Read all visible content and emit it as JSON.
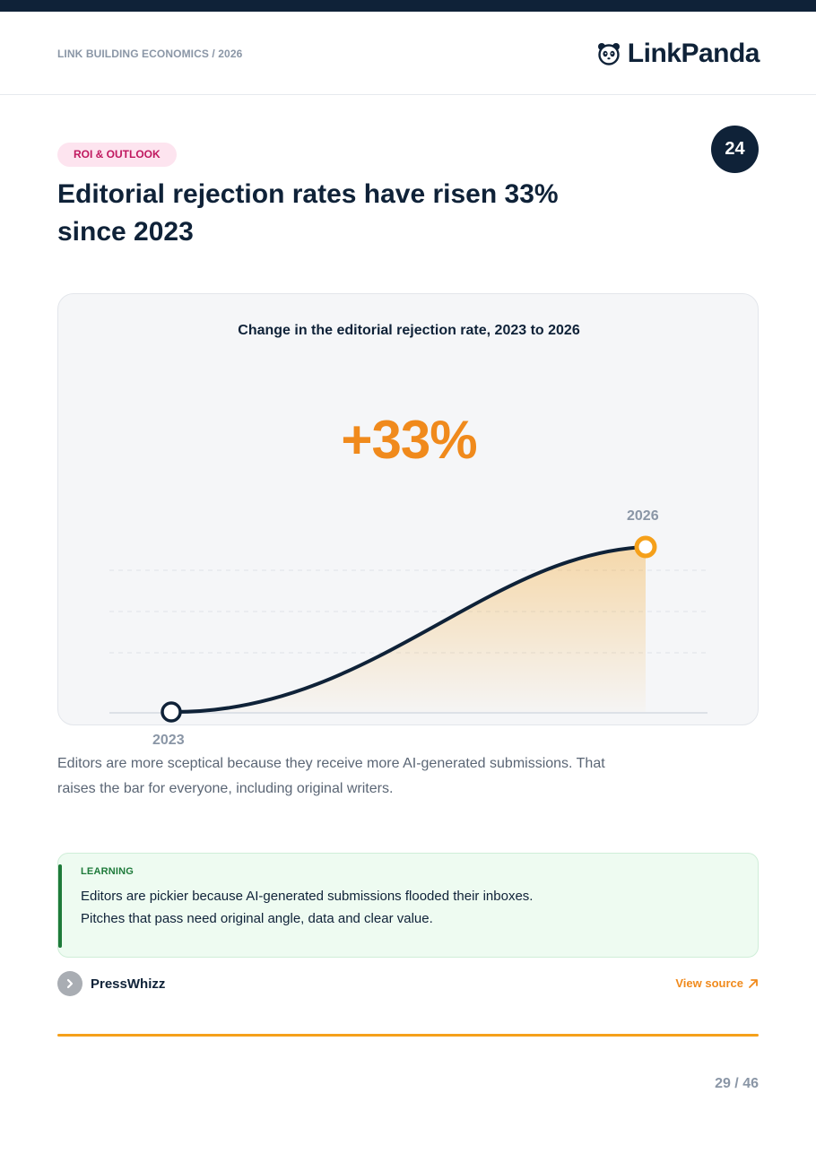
{
  "header": {
    "breadcrumb": "LINK BUILDING ECONOMICS / 2026",
    "brand_name": "LinkPanda",
    "brand_icon": "panda-icon"
  },
  "section": {
    "tag": "ROI & OUTLOOK",
    "number": "24",
    "title_line1": "Editorial rejection rates have risen 33%",
    "title_line2": "since 2023"
  },
  "chart_data": {
    "type": "line",
    "title": "Change in the editorial rejection rate, 2023 to 2026",
    "headline_value": "+33%",
    "x": [
      "2023",
      "2026"
    ],
    "series": [
      {
        "values": [
          0,
          33
        ]
      }
    ],
    "ylim": [
      0,
      33
    ],
    "grid": true,
    "colors": {
      "line": "#0f2238",
      "fill": "#f5a01a",
      "end_marker": "#f5a01a",
      "start_marker": "#0f2238"
    }
  },
  "body": {
    "line1": "Editors are more sceptical because they receive more AI-generated submissions. That",
    "line2": "raises the bar for everyone, including original writers."
  },
  "callout": {
    "label": "LEARNING",
    "line1": "Editors are pickier because AI-generated submissions flooded their inboxes.",
    "line2": "Pitches that pass need original angle, data and clear value."
  },
  "source": {
    "name": "PressWhizz",
    "icon": "chevron-right-icon",
    "link_label": "View source",
    "link_icon": "arrow-up-right-icon"
  },
  "footer": {
    "page_indicator": "29 / 46"
  },
  "colors": {
    "navy": "#0f2238",
    "accent": "#f08a1c",
    "tag_bg": "#fde4ef",
    "tag_text": "#c0185f",
    "learning_green": "#1e7a3a"
  }
}
